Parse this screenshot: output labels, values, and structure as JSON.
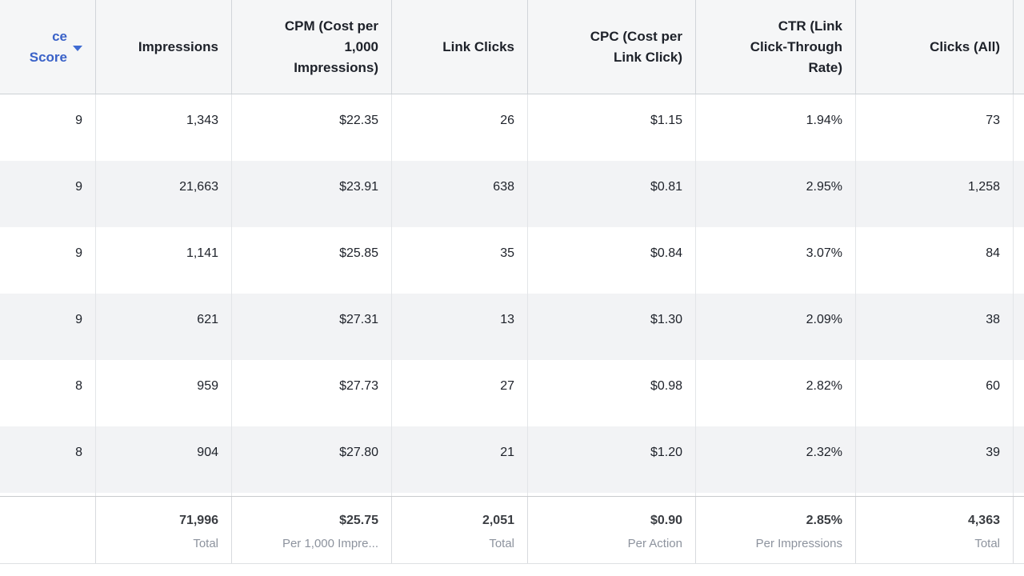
{
  "table": {
    "columns": [
      {
        "id": "score",
        "label": "ce Score",
        "sorted": true,
        "sort_direction": "desc"
      },
      {
        "id": "impressions",
        "label": "Impressions"
      },
      {
        "id": "cpm",
        "label": "CPM (Cost per\n1,000\nImpressions)"
      },
      {
        "id": "link_clicks",
        "label": "Link Clicks"
      },
      {
        "id": "cpc",
        "label": "CPC (Cost per\nLink Click)"
      },
      {
        "id": "ctr",
        "label": "CTR (Link\nClick-Through\nRate)"
      },
      {
        "id": "clicks_all",
        "label": "Clicks (All)"
      }
    ],
    "rows": [
      [
        "9",
        "1,343",
        "$22.35",
        "26",
        "$1.15",
        "1.94%",
        "73"
      ],
      [
        "9",
        "21,663",
        "$23.91",
        "638",
        "$0.81",
        "2.95%",
        "1,258"
      ],
      [
        "9",
        "1,141",
        "$25.85",
        "35",
        "$0.84",
        "3.07%",
        "84"
      ],
      [
        "9",
        "621",
        "$27.31",
        "13",
        "$1.30",
        "2.09%",
        "38"
      ],
      [
        "8",
        "959",
        "$27.73",
        "27",
        "$0.98",
        "2.82%",
        "60"
      ],
      [
        "8",
        "904",
        "$27.80",
        "21",
        "$1.20",
        "2.32%",
        "39"
      ]
    ],
    "totals": {
      "score": {
        "value": "",
        "caption": ""
      },
      "impressions": {
        "value": "71,996",
        "caption": "Total"
      },
      "cpm": {
        "value": "$25.75",
        "caption": "Per 1,000 Impre..."
      },
      "link_clicks": {
        "value": "2,051",
        "caption": "Total"
      },
      "cpc": {
        "value": "$0.90",
        "caption": "Per Action"
      },
      "ctr": {
        "value": "2.85%",
        "caption": "Per Impressions"
      },
      "clicks_all": {
        "value": "4,363",
        "caption": "Total"
      }
    },
    "colors": {
      "sorted_header_blue": "#3a62c8",
      "header_bg": "#f5f6f7",
      "row_alt_bg": "#f2f3f5",
      "text_primary": "#1d2129",
      "text_muted": "#8d939e",
      "border_strong": "#ccd0d5",
      "border_light": "#e3e5e8"
    }
  }
}
